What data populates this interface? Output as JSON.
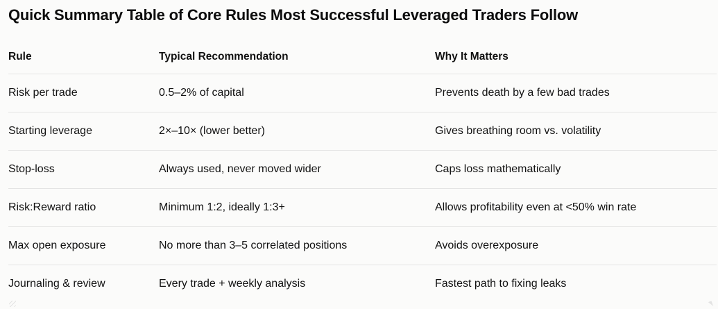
{
  "title": "Quick Summary Table of Core Rules Most Successful Leveraged Traders Follow",
  "table": {
    "columns": {
      "rule": "Rule",
      "recommendation": "Typical Recommendation",
      "why": "Why It Matters"
    },
    "rows": [
      {
        "rule": "Risk per trade",
        "recommendation": "0.5–2% of capital",
        "why": "Prevents death by a few bad trades"
      },
      {
        "rule": "Starting leverage",
        "recommendation": "2×–10× (lower better)",
        "why": "Gives breathing room vs. volatility"
      },
      {
        "rule": "Stop-loss",
        "recommendation": "Always used, never moved wider",
        "why": "Caps loss mathematically"
      },
      {
        "rule": "Risk:Reward ratio",
        "recommendation": "Minimum 1:2, ideally 1:3+",
        "why": "Allows profitability even at <50% win rate"
      },
      {
        "rule": "Max open exposure",
        "recommendation": "No more than 3–5 correlated positions",
        "why": "Avoids overexposure"
      },
      {
        "rule": "Journaling & review",
        "recommendation": "Every trade + weekly analysis",
        "why": "Fastest path to fixing leaks"
      }
    ]
  },
  "colors": {
    "background": "#fbfbfa",
    "text": "#0d0d0d",
    "divider": "#e4e4e4"
  }
}
